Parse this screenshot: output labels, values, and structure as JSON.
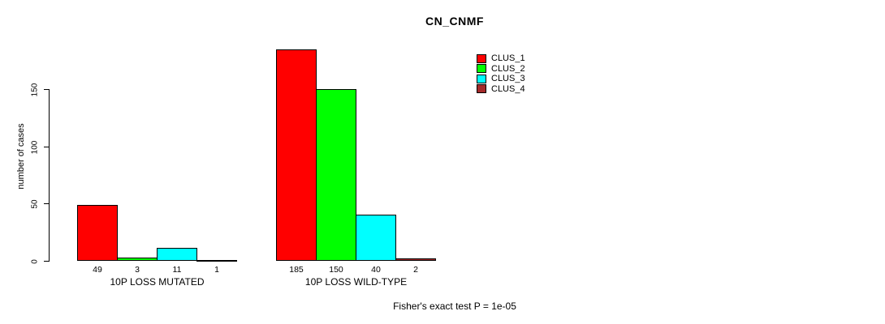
{
  "chart_data": {
    "type": "bar",
    "title": "CN_CNMF",
    "ylabel": "number of cases",
    "xlabel": "",
    "categories": [
      "10P LOSS MUTATED",
      "10P LOSS WILD-TYPE"
    ],
    "series": [
      {
        "name": "CLUS_1",
        "color": "#ff0000",
        "values": [
          49,
          185
        ]
      },
      {
        "name": "CLUS_2",
        "color": "#00ff00",
        "values": [
          3,
          150
        ]
      },
      {
        "name": "CLUS_3",
        "color": "#00ffff",
        "values": [
          11,
          40
        ]
      },
      {
        "name": "CLUS_4",
        "color": "#a52a2a",
        "values": [
          1,
          2
        ]
      }
    ],
    "yticks": [
      0,
      50,
      100,
      150
    ],
    "ylim": [
      0,
      150
    ],
    "grid": false,
    "legend_position": "top-right",
    "value_labels_shown": true,
    "annotation": "Fisher's exact test P = 1e-05",
    "axis_color": "#000000",
    "background_color": "#ffffff"
  }
}
